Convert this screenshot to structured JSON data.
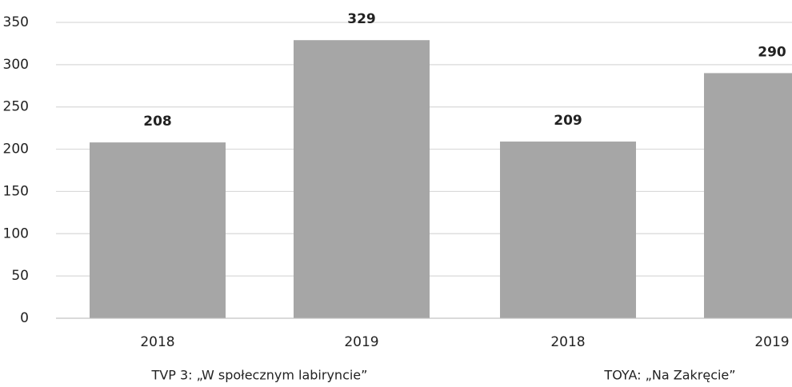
{
  "chart_data": {
    "type": "bar",
    "groups": [
      {
        "name": "TVP 3: „W społecznym labiryncie”",
        "categories": [
          "2018",
          "2019"
        ],
        "values": [
          208,
          329
        ]
      },
      {
        "name": "TOYA: „Na Zakręcie”",
        "categories": [
          "2018",
          "2019"
        ],
        "values": [
          209,
          290
        ]
      }
    ],
    "color": "#a6a6a6",
    "ylim": [
      0,
      350
    ],
    "yticks": [
      0,
      50,
      100,
      150,
      200,
      250,
      300,
      350
    ],
    "grid": true
  }
}
